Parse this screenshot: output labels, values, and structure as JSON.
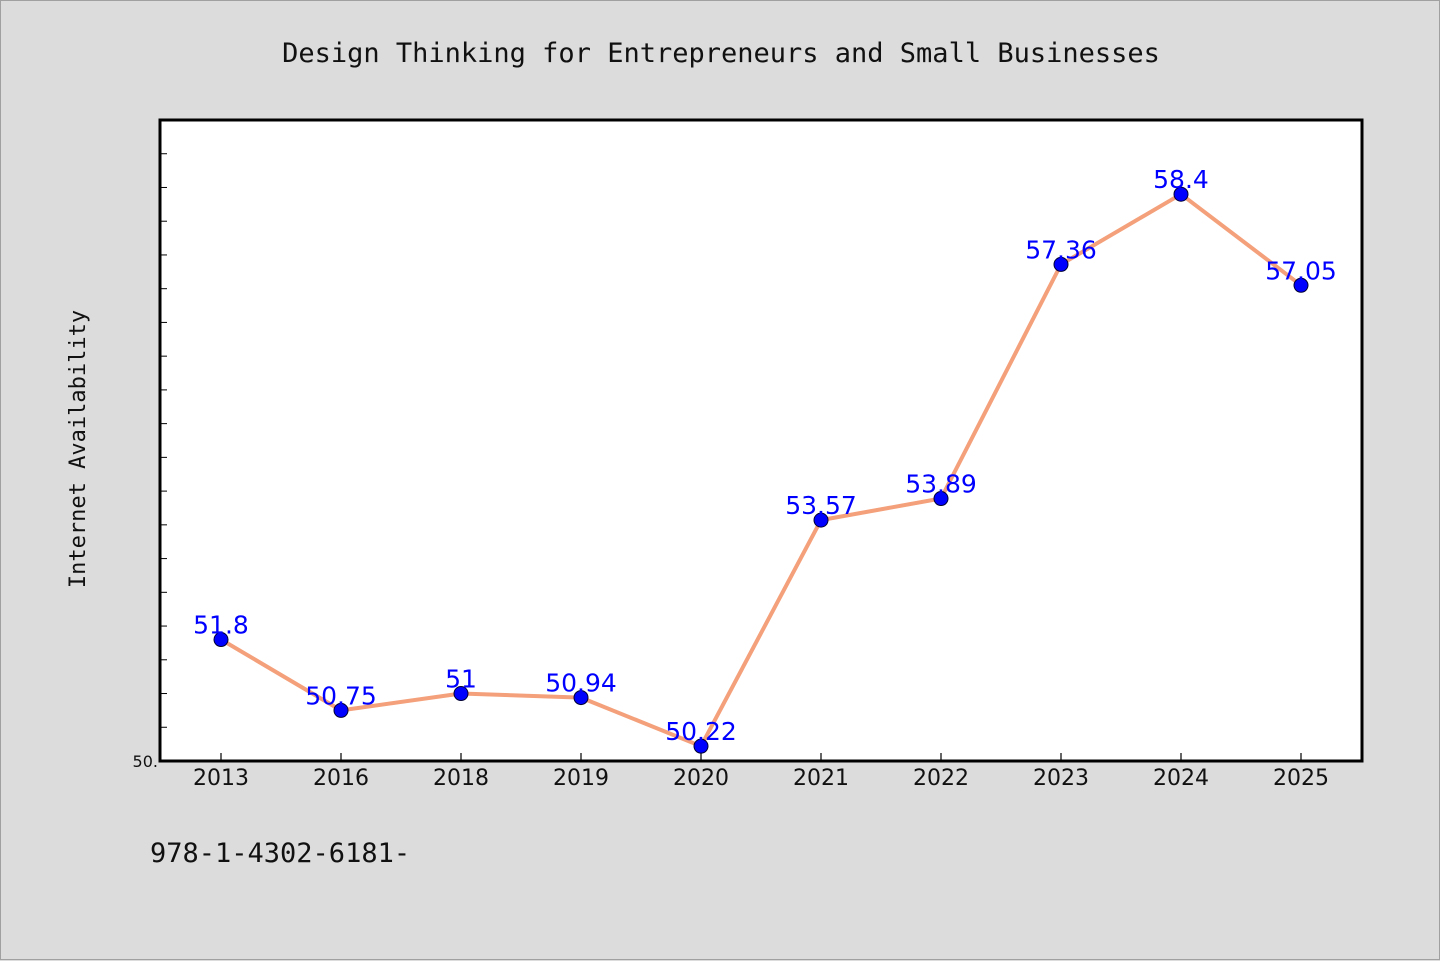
{
  "chart_data": {
    "type": "line",
    "title": "Design Thinking for Entrepreneurs and Small Businesses",
    "xlabel": "",
    "ylabel": "Internet Availability",
    "categories": [
      "2013",
      "2016",
      "2018",
      "2019",
      "2020",
      "2021",
      "2022",
      "2023",
      "2024",
      "2025"
    ],
    "series": [
      {
        "values": [
          51.8,
          50.75,
          51,
          50.94,
          50.22,
          53.57,
          53.89,
          57.36,
          58.4,
          57.05
        ],
        "labels": [
          "51.8",
          "50.75",
          "51",
          "50.94",
          "50.22",
          "53.57",
          "53.89",
          "57.36",
          "58.4",
          "57.05"
        ],
        "line_color": "#f4a07a",
        "marker_color": "#0000ff"
      }
    ],
    "ylim": [
      50,
      59.5
    ],
    "ytick_label": "50.",
    "grid": false,
    "legend": "none"
  },
  "footer": {
    "text": "978-1-4302-6181-"
  },
  "colors": {
    "background": "#dcdcdc",
    "plot_background": "#ffffff",
    "label_color": "#0000ff"
  }
}
